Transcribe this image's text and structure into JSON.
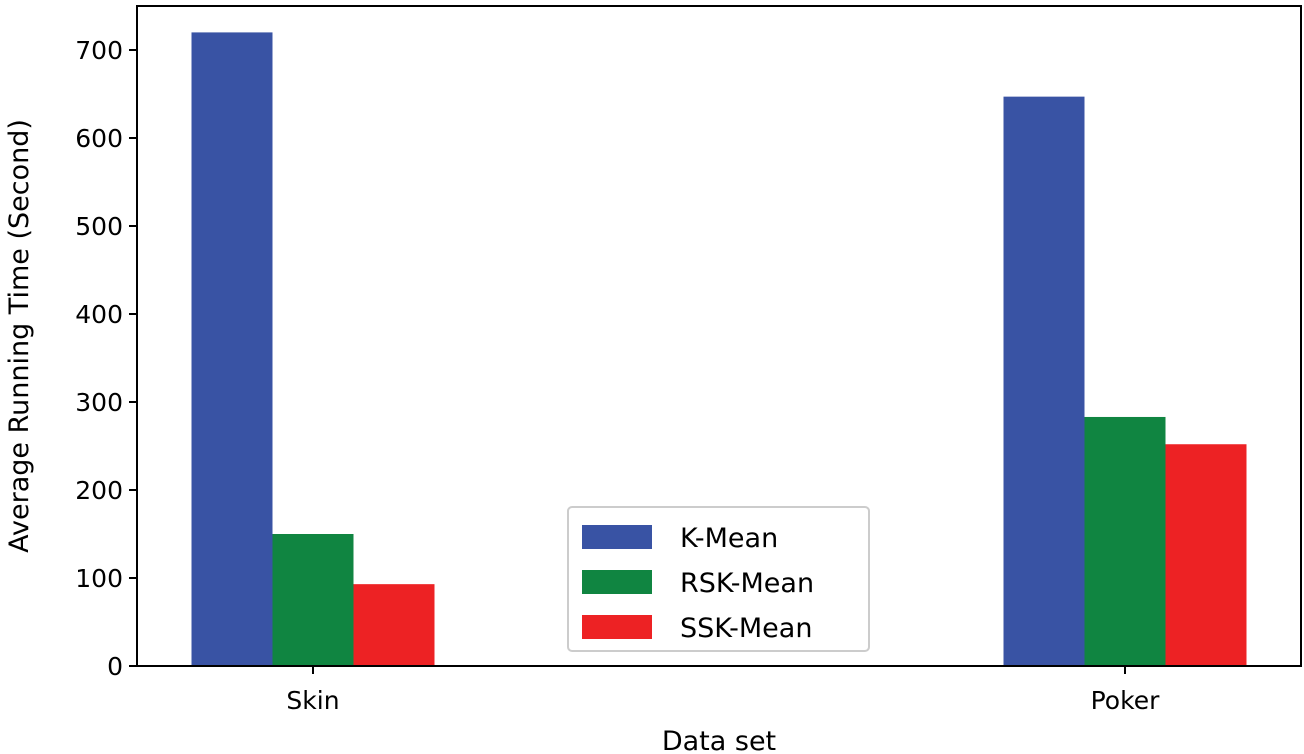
{
  "chart_data": {
    "type": "bar",
    "title": "",
    "xlabel": "Data set",
    "ylabel": "Average Running Time (Second)",
    "categories": [
      "Skin",
      "Poker"
    ],
    "series": [
      {
        "name": "K-Mean",
        "color": "#3953a4",
        "values": [
          720,
          647
        ]
      },
      {
        "name": "RSK-Mean",
        "color": "#108541",
        "values": [
          150,
          283
        ]
      },
      {
        "name": "SSK-Mean",
        "color": "#ed2224",
        "values": [
          93,
          252
        ]
      }
    ],
    "ylim": [
      0,
      750
    ],
    "yticks": [
      0,
      100,
      200,
      300,
      400,
      500,
      600,
      700
    ],
    "grid": false,
    "legend_position": "bottom-center"
  }
}
